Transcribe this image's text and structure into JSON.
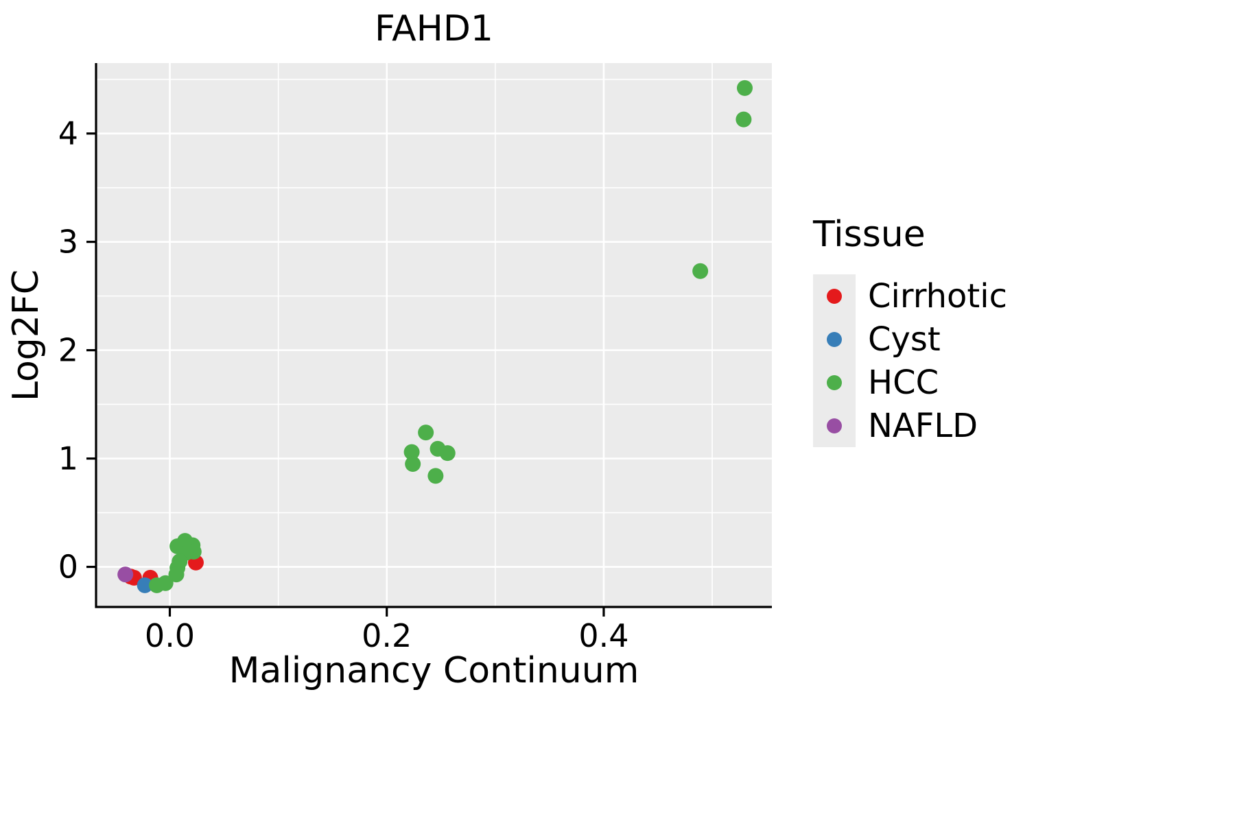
{
  "chart_data": {
    "type": "scatter",
    "title": "FAHD1",
    "xlabel": "Malignancy Continuum",
    "ylabel": "Log2FC",
    "xlim": [
      -0.068,
      0.555
    ],
    "ylim": [
      -0.37,
      4.65
    ],
    "xticks": [
      0.0,
      0.2,
      0.4
    ],
    "xtick_labels": [
      "0.0",
      "0.2",
      "0.4"
    ],
    "yticks": [
      0,
      1,
      2,
      3,
      4
    ],
    "ytick_labels": [
      "0",
      "1",
      "2",
      "3",
      "4"
    ],
    "xticks_minor": [
      0.1,
      0.3,
      0.5
    ],
    "yticks_minor": [
      0.5,
      1.5,
      2.5,
      3.5,
      4.5
    ],
    "grid": true,
    "panel_background": "#EBEBEB",
    "grid_color": "#FFFFFF",
    "axis_color": "#000000",
    "point_radius": 11.5,
    "legend": {
      "title": "Tissue",
      "position": "right"
    },
    "series": [
      {
        "name": "Cirrhotic",
        "color": "#E41A1C",
        "points": [
          [
            -0.036,
            -0.09
          ],
          [
            -0.033,
            -0.1
          ],
          [
            -0.018,
            -0.1
          ],
          [
            0.024,
            0.04
          ]
        ]
      },
      {
        "name": "Cyst",
        "color": "#377EB8",
        "points": [
          [
            -0.023,
            -0.17
          ]
        ]
      },
      {
        "name": "HCC",
        "color": "#4DAF4A",
        "points": [
          [
            0.53,
            4.42
          ],
          [
            0.529,
            4.13
          ],
          [
            0.489,
            2.73
          ],
          [
            0.223,
            1.06
          ],
          [
            0.224,
            0.95
          ],
          [
            0.236,
            1.24
          ],
          [
            0.247,
            1.09
          ],
          [
            0.256,
            1.05
          ],
          [
            0.245,
            0.84
          ],
          [
            -0.012,
            -0.17
          ],
          [
            -0.004,
            -0.15
          ],
          [
            0.007,
            0.19
          ],
          [
            0.014,
            0.24
          ],
          [
            0.021,
            0.2
          ],
          [
            0.022,
            0.14
          ],
          [
            0.015,
            0.13
          ],
          [
            0.009,
            0.05
          ],
          [
            0.007,
            -0.01
          ],
          [
            0.006,
            -0.07
          ]
        ]
      },
      {
        "name": "NAFLD",
        "color": "#984EA3",
        "points": [
          [
            -0.041,
            -0.07
          ]
        ]
      }
    ]
  }
}
